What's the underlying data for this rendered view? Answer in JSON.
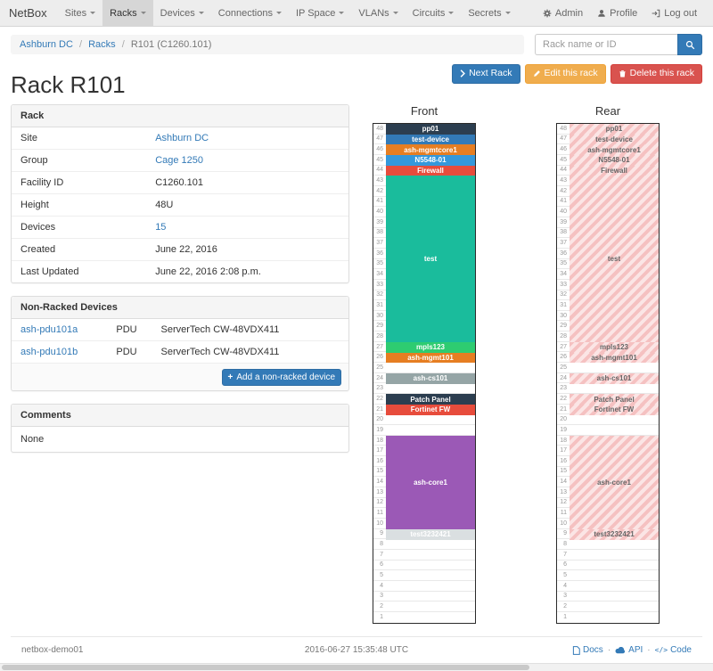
{
  "navbar": {
    "brand": "NetBox",
    "items": [
      {
        "label": "Sites",
        "active": false
      },
      {
        "label": "Racks",
        "active": true
      },
      {
        "label": "Devices",
        "active": false
      },
      {
        "label": "Connections",
        "active": false
      },
      {
        "label": "IP Space",
        "active": false
      },
      {
        "label": "VLANs",
        "active": false
      },
      {
        "label": "Circuits",
        "active": false
      },
      {
        "label": "Secrets",
        "active": false
      }
    ],
    "admin": "Admin",
    "profile": "Profile",
    "logout": "Log out",
    "icons": [
      "gear-icon",
      "user-icon",
      "logout-icon"
    ]
  },
  "breadcrumb": {
    "site": "Ashburn DC",
    "section": "Racks",
    "current": "R101 (C1260.101)"
  },
  "search": {
    "placeholder": "Rack name or ID",
    "icon": "search-icon"
  },
  "actions": {
    "next": "Next Rack",
    "edit": "Edit this rack",
    "delete": "Delete this rack",
    "icons": [
      "chevron-right-icon",
      "pencil-icon",
      "trash-icon"
    ]
  },
  "title": "Rack R101",
  "panels": {
    "rack": {
      "title": "Rack",
      "rows": [
        {
          "label": "Site",
          "value": "Ashburn DC",
          "link": true
        },
        {
          "label": "Group",
          "value": "Cage 1250",
          "link": true
        },
        {
          "label": "Facility ID",
          "value": "C1260.101",
          "link": false
        },
        {
          "label": "Height",
          "value": "48U",
          "link": false
        },
        {
          "label": "Devices",
          "value": "15",
          "link": true
        },
        {
          "label": "Created",
          "value": "June 22, 2016",
          "link": false
        },
        {
          "label": "Last Updated",
          "value": "June 22, 2016 2:08 p.m.",
          "link": false
        }
      ]
    },
    "nonracked": {
      "title": "Non-Racked Devices",
      "devices": [
        {
          "name": "ash-pdu101a",
          "role": "PDU",
          "type": "ServerTech CW-48VDX411"
        },
        {
          "name": "ash-pdu101b",
          "role": "PDU",
          "type": "ServerTech CW-48VDX411"
        }
      ],
      "add_label": "Add a non-racked device",
      "add_icon": "plus-icon"
    },
    "comments": {
      "title": "Comments",
      "body": "None"
    }
  },
  "elevation": {
    "front_label": "Front",
    "rear_label": "Rear",
    "total_units": 48,
    "rear_hatch": [
      "#f5c1c1",
      "#fbe5e5"
    ],
    "rear_text_color": "#666666",
    "devices": [
      {
        "name": "pp01",
        "unit": 48,
        "u_height": 1,
        "color": "#2c3e50"
      },
      {
        "name": "test-device",
        "unit": 47,
        "u_height": 1,
        "color": "#337ab7"
      },
      {
        "name": "ash-mgmtcore1",
        "unit": 46,
        "u_height": 1,
        "color": "#e67e22"
      },
      {
        "name": "N5548-01",
        "unit": 45,
        "u_height": 1,
        "color": "#3498db"
      },
      {
        "name": "Firewall",
        "unit": 44,
        "u_height": 1,
        "color": "#e74c3c"
      },
      {
        "name": "test",
        "unit": 43,
        "u_height": 16,
        "color": "#1abc9c"
      },
      {
        "name": "mpls123",
        "unit": 27,
        "u_height": 1,
        "color": "#2ecc71"
      },
      {
        "name": "ash-mgmt101",
        "unit": 26,
        "u_height": 1,
        "color": "#e67e22"
      },
      {
        "name": "ash-cs101",
        "unit": 24,
        "u_height": 1,
        "color": "#95a5a6"
      },
      {
        "name": "Patch Panel",
        "unit": 22,
        "u_height": 1,
        "color": "#2c3e50"
      },
      {
        "name": "Fortinet FW",
        "unit": 21,
        "u_height": 1,
        "color": "#e74c3c"
      },
      {
        "name": "ash-core1",
        "unit": 18,
        "u_height": 9,
        "color": "#9b59b6"
      },
      {
        "name": "test3232421",
        "unit": 9,
        "u_height": 1,
        "color": "#dadfe1",
        "text_color": "#ffffff"
      }
    ]
  },
  "footer": {
    "hostname": "netbox-demo01",
    "timestamp": "2016-06-27 15:35:48 UTC",
    "links": [
      {
        "label": "Docs",
        "icon": "doc"
      },
      {
        "label": "API",
        "icon": "cloud"
      },
      {
        "label": "Code",
        "icon": "code"
      }
    ]
  },
  "colors": {
    "link": "#337ab7",
    "primary_button": "#337ab7",
    "warning_button": "#f0ad4e",
    "danger_button": "#d9534f",
    "panel_heading_bg": "#f5f5f5",
    "navbar_bg": "#ededed"
  }
}
